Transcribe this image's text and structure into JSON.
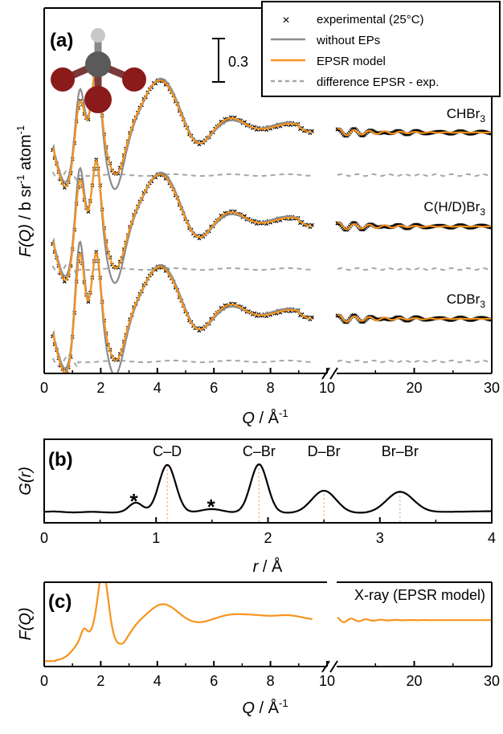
{
  "colors": {
    "experimental": "#000000",
    "without_eps": "#8c8c8c",
    "epsr": "#f7941d",
    "difference": "#a6a6a6",
    "bond_marker": "#f4b183",
    "atom_c": "#5a5a5a",
    "atom_h": "#c8c8c8",
    "atom_br": "#8b1a1a"
  },
  "chart_data": [
    {
      "panel_label": "(a)",
      "type": "line",
      "xlabel_var": "Q",
      "xlabel_unit": " / Å",
      "xlabel_exp": "-1",
      "ylabel_var": "F(Q)",
      "ylabel_rest": " / b sr",
      "ylabel_exp": "-1",
      "ylabel_tail": " atom",
      "ylabel_exp2": "-1",
      "x_ranges": [
        [
          0,
          10
        ],
        [
          10,
          30
        ]
      ],
      "axis_break": "//",
      "x_ticks_left": [
        "0",
        "2",
        "4",
        "6",
        "8"
      ],
      "x_ticks_right": [
        "10",
        "20",
        "30"
      ],
      "scale_bar": "0.3",
      "legend": {
        "placement": "top-right",
        "entries": [
          {
            "symbol": "×",
            "label": "experimental (25°C)"
          },
          {
            "symbol": "solid-gray",
            "label": "without EPs"
          },
          {
            "symbol": "solid-orange",
            "label": "EPSR model"
          },
          {
            "symbol": "dashed-gray",
            "label": "difference EPSR - exp."
          }
        ]
      },
      "series_groups": [
        {
          "name": "CHBr",
          "sub": "3",
          "shape": {
            "peak1": 0.46,
            "peak1_width": 0.28
          }
        },
        {
          "name": "C(H/D)Br",
          "sub": "3",
          "shape": {
            "peak1": 0.62,
            "peak1_width": 0.2
          }
        },
        {
          "name": "CDBr",
          "sub": "3",
          "shape": {
            "peak1": 0.82,
            "peak1_width": 0.14
          }
        }
      ]
    },
    {
      "panel_label": "(b)",
      "type": "line",
      "xlabel_var": "r",
      "xlabel_unit": " / Å",
      "ylabel_var": "G(r)",
      "xlim": [
        0,
        4
      ],
      "x_ticks": [
        "0",
        "1",
        "2",
        "3",
        "4"
      ],
      "peak_labels": [
        {
          "label": "C–D",
          "r": 1.1
        },
        {
          "label": "C–Br",
          "r": 1.92
        },
        {
          "label": "D–Br",
          "r": 2.5
        },
        {
          "label": "Br–Br",
          "r": 3.18
        }
      ],
      "artifact_marks": [
        {
          "symbol": "*",
          "r": 0.78
        },
        {
          "symbol": "*",
          "r": 1.47
        }
      ],
      "peaks": [
        {
          "r": 0.82,
          "height": 0.16,
          "width": 0.06
        },
        {
          "r": 1.1,
          "height": 0.8,
          "width": 0.075
        },
        {
          "r": 1.92,
          "height": 0.82,
          "width": 0.075
        },
        {
          "r": 2.5,
          "height": 0.38,
          "width": 0.11
        },
        {
          "r": 3.18,
          "height": 0.35,
          "width": 0.12
        }
      ]
    },
    {
      "panel_label": "(c)",
      "type": "line",
      "series_name": "X-ray (EPSR model)",
      "xlabel_var": "Q",
      "xlabel_unit": " / Å",
      "xlabel_exp": "-1",
      "ylabel_var": "F(Q)",
      "x_ranges": [
        [
          0,
          10
        ],
        [
          10,
          30
        ]
      ],
      "axis_break": "//",
      "x_ticks_left": [
        "0",
        "2",
        "4",
        "6",
        "8"
      ],
      "x_ticks_right": [
        "10",
        "20",
        "30"
      ]
    }
  ]
}
